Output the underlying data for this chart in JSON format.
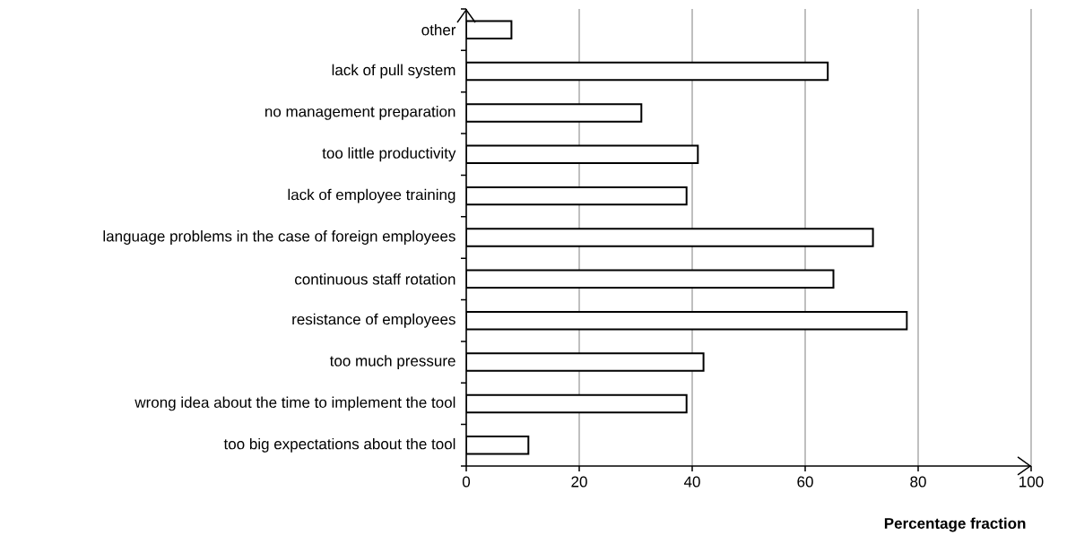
{
  "chart_data": {
    "type": "bar",
    "orientation": "horizontal",
    "xlabel": "Percentage fraction",
    "categories": [
      "other",
      "lack of pull system",
      "no management preparation",
      "too little productivity",
      "lack of employee training",
      "language problems in the case of foreign employees",
      "continuous staff rotation",
      "resistance of employees",
      "too much pressure",
      "wrong idea about the time to implement the tool",
      "too big expectations about the tool"
    ],
    "values": [
      8,
      64,
      31,
      41,
      39,
      72,
      65,
      78,
      42,
      39,
      11
    ],
    "color": "#ffffff",
    "xlim": [
      0,
      100
    ],
    "xticks": [
      0,
      20,
      40,
      60,
      80,
      100
    ],
    "grid": "x"
  }
}
